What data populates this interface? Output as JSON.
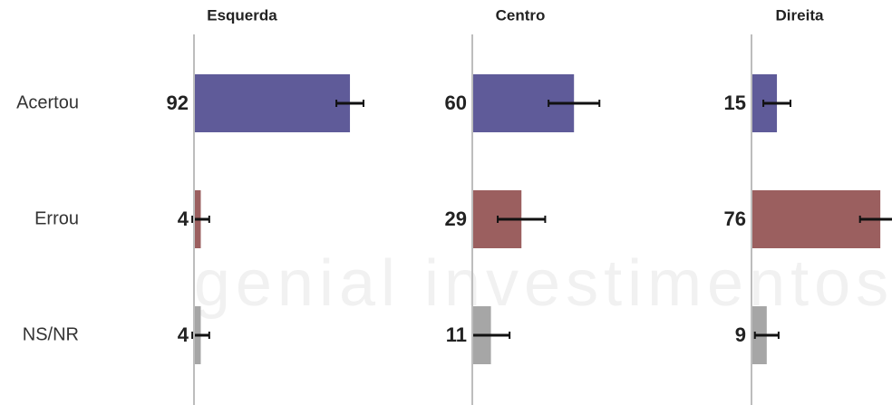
{
  "chart_data": {
    "type": "bar",
    "watermark": "genial investimentos",
    "categories": [
      "Acertou",
      "Errou",
      "NS/NR"
    ],
    "colors": [
      "#5f5b99",
      "#9b5f5f",
      "#a6a6a6"
    ],
    "xlim": [
      0,
      100
    ],
    "series": [
      {
        "name": "Esquerda",
        "values": [
          92,
          4,
          4
        ],
        "errors": [
          8,
          5,
          5
        ]
      },
      {
        "name": "Centro",
        "values": [
          60,
          29,
          11
        ],
        "errors": [
          15,
          14,
          11
        ]
      },
      {
        "name": "Direita",
        "values": [
          15,
          76,
          9
        ],
        "errors": [
          8,
          12,
          7
        ]
      }
    ]
  }
}
